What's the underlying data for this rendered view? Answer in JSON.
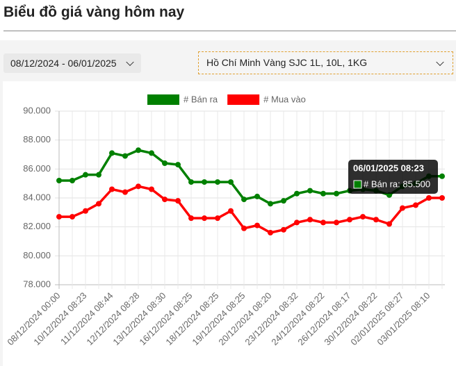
{
  "header": {
    "title": "Biểu đồ giá vàng hôm nay"
  },
  "filters": {
    "date_range": "08/12/2024 - 06/01/2025",
    "product": "Hồ Chí Minh Vàng SJC 1L, 10L, 1KG"
  },
  "chart_data": {
    "type": "line",
    "categories": [
      "08/12/2024 00:00",
      null,
      "10/12/2024 08:23",
      null,
      "11/12/2024 08:44",
      null,
      "12/12/2024 08:28",
      null,
      "13/12/2024 08:30",
      null,
      "16/12/2024 08:25",
      null,
      "18/12/2024 08:25",
      null,
      "19/12/2024 08:25",
      null,
      "20/12/2024 08:20",
      null,
      "23/12/2024 08:32",
      null,
      "24/12/2024 08:22",
      null,
      "26/12/2024 08:17",
      null,
      "30/12/2024 08:22",
      null,
      "02/01/2025 08:27",
      null,
      "03/01/2025 08:10",
      null
    ],
    "series": [
      {
        "name": "# Bán ra",
        "color": "#008000",
        "values": [
          85200,
          85200,
          85600,
          85600,
          87100,
          86900,
          87300,
          87100,
          86400,
          86300,
          85100,
          85100,
          85100,
          85100,
          83900,
          84100,
          83600,
          83800,
          84300,
          84500,
          84300,
          84300,
          84500,
          84600,
          84500,
          84200,
          84800,
          85000,
          85500,
          85500
        ]
      },
      {
        "name": "# Mua vào",
        "color": "#ff0000",
        "values": [
          82700,
          82700,
          83100,
          83600,
          84600,
          84400,
          84800,
          84600,
          83900,
          83800,
          82600,
          82600,
          82600,
          83100,
          81900,
          82100,
          81600,
          81800,
          82300,
          82500,
          82300,
          82300,
          82500,
          82700,
          82500,
          82200,
          83300,
          83500,
          84000,
          84000
        ]
      }
    ],
    "ylim": [
      78000,
      90000
    ],
    "yticks": [
      {
        "value": 78000,
        "label": "78.000"
      },
      {
        "value": 80000,
        "label": "80.000"
      },
      {
        "value": 82000,
        "label": "82.000"
      },
      {
        "value": 84000,
        "label": "84.000"
      },
      {
        "value": 86000,
        "label": "86.000"
      },
      {
        "value": 88000,
        "label": "88.000"
      },
      {
        "value": 90000,
        "label": "90.000"
      }
    ],
    "grid": true,
    "legend": "top",
    "tooltip": {
      "title": "06/01/2025 08:23",
      "text": "# Bán ra: 85.500"
    }
  }
}
